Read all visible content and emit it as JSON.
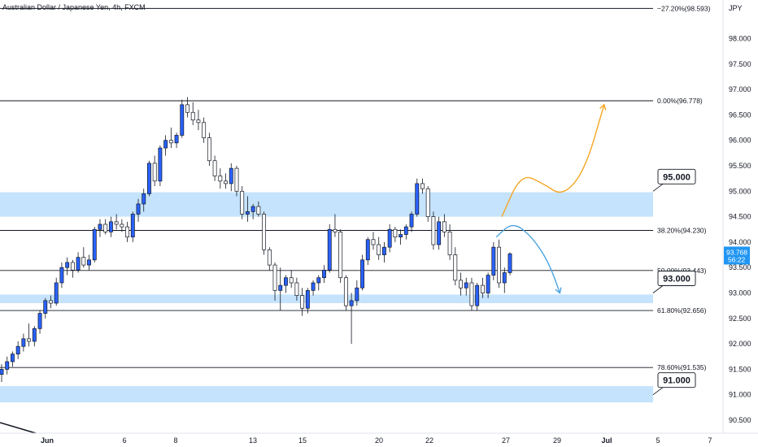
{
  "chart_data": {
    "type": "candlestick",
    "title": "Australian Dollar / Japanese Yen, 4h, FXCM",
    "y_unit": "JPY",
    "ylim": [
      90.3,
      98.8
    ],
    "y_ticks": [
      "98.000",
      "97.500",
      "97.000",
      "96.500",
      "96.000",
      "95.500",
      "95.000",
      "94.500",
      "94.000",
      "93.500",
      "93.000",
      "92.500",
      "92.000",
      "91.500",
      "91.000",
      "90.500"
    ],
    "x_ticks": [
      "Jun",
      "6",
      "8",
      "13",
      "15",
      "20",
      "22",
      "27",
      "29",
      "Jul",
      "5",
      "7"
    ],
    "fib_levels": [
      {
        "label": "−27.20%(98.593)",
        "price": 98.593
      },
      {
        "label": "0.00%(96.778)",
        "price": 96.778
      },
      {
        "label": "38.20%(94.230)",
        "price": 94.23
      },
      {
        "label": "50.00%(93.443)",
        "price": 93.443
      },
      {
        "label": "61.80%(92.656)",
        "price": 92.656
      },
      {
        "label": "78.60%(91.535)",
        "price": 91.535
      }
    ],
    "zones": [
      {
        "from": 94.5,
        "to": 94.98
      },
      {
        "from": 92.8,
        "to": 92.97
      },
      {
        "from": 90.85,
        "to": 91.17
      }
    ],
    "level_callouts": [
      {
        "text": "95.000",
        "price": 95.0
      },
      {
        "text": "93.000",
        "price": 93.0
      },
      {
        "text": "91.000",
        "price": 91.0
      }
    ],
    "price_tag": {
      "price": "93.768",
      "countdown": "56:22",
      "value": 93.768
    },
    "candles": [
      [
        91.4,
        91.6,
        91.25,
        91.5
      ],
      [
        91.5,
        91.75,
        91.4,
        91.65
      ],
      [
        91.65,
        91.85,
        91.55,
        91.8
      ],
      [
        91.8,
        92.05,
        91.7,
        91.95
      ],
      [
        91.95,
        92.2,
        91.85,
        92.1
      ],
      [
        92.1,
        92.4,
        91.95,
        92.05
      ],
      [
        92.05,
        92.35,
        91.95,
        92.3
      ],
      [
        92.3,
        92.65,
        92.2,
        92.6
      ],
      [
        92.6,
        92.9,
        92.5,
        92.85
      ],
      [
        92.85,
        92.95,
        92.7,
        92.8
      ],
      [
        92.8,
        93.3,
        92.75,
        93.2
      ],
      [
        93.2,
        93.6,
        93.1,
        93.5
      ],
      [
        93.5,
        93.7,
        93.35,
        93.6
      ],
      [
        93.6,
        93.65,
        93.3,
        93.45
      ],
      [
        93.45,
        93.8,
        93.4,
        93.7
      ],
      [
        93.7,
        93.9,
        93.5,
        93.55
      ],
      [
        93.55,
        93.75,
        93.45,
        93.65
      ],
      [
        93.65,
        94.3,
        93.6,
        94.25
      ],
      [
        94.25,
        94.45,
        94.1,
        94.35
      ],
      [
        94.35,
        94.45,
        94.15,
        94.2
      ],
      [
        94.2,
        94.5,
        94.1,
        94.4
      ],
      [
        94.4,
        94.55,
        94.25,
        94.35
      ],
      [
        94.35,
        94.45,
        94.2,
        94.3
      ],
      [
        94.3,
        94.4,
        94.0,
        94.1
      ],
      [
        94.1,
        94.6,
        94.0,
        94.55
      ],
      [
        94.55,
        94.85,
        94.4,
        94.75
      ],
      [
        94.75,
        95.05,
        94.6,
        94.95
      ],
      [
        94.95,
        95.6,
        94.9,
        95.55
      ],
      [
        95.55,
        95.7,
        95.1,
        95.2
      ],
      [
        95.2,
        95.9,
        95.1,
        95.85
      ],
      [
        95.85,
        96.1,
        95.7,
        96.0
      ],
      [
        96.0,
        96.25,
        95.85,
        95.95
      ],
      [
        95.95,
        96.15,
        95.85,
        96.1
      ],
      [
        96.1,
        96.8,
        96.05,
        96.7
      ],
      [
        96.7,
        96.85,
        96.45,
        96.55
      ],
      [
        96.55,
        96.75,
        96.3,
        96.4
      ],
      [
        96.4,
        96.6,
        96.2,
        96.35
      ],
      [
        96.35,
        96.45,
        95.95,
        96.05
      ],
      [
        96.05,
        96.15,
        95.5,
        95.6
      ],
      [
        95.6,
        95.7,
        95.2,
        95.3
      ],
      [
        95.3,
        95.45,
        95.05,
        95.2
      ],
      [
        95.2,
        95.35,
        95.05,
        95.15
      ],
      [
        95.15,
        95.55,
        95.0,
        95.45
      ],
      [
        95.45,
        95.5,
        94.9,
        95.0
      ],
      [
        95.0,
        95.1,
        94.45,
        94.55
      ],
      [
        94.55,
        94.9,
        94.4,
        94.6
      ],
      [
        94.6,
        94.75,
        94.45,
        94.7
      ],
      [
        94.7,
        94.8,
        94.5,
        94.55
      ],
      [
        94.55,
        94.6,
        93.75,
        93.85
      ],
      [
        93.85,
        93.9,
        93.45,
        93.55
      ],
      [
        93.55,
        93.6,
        92.85,
        93.05
      ],
      [
        93.05,
        93.5,
        92.65,
        93.15
      ],
      [
        93.15,
        93.35,
        93.0,
        93.3
      ],
      [
        93.3,
        93.45,
        93.1,
        93.2
      ],
      [
        93.2,
        93.3,
        92.85,
        92.95
      ],
      [
        92.95,
        93.1,
        92.55,
        92.7
      ],
      [
        92.7,
        93.1,
        92.6,
        93.05
      ],
      [
        93.05,
        93.25,
        92.95,
        93.2
      ],
      [
        93.2,
        93.35,
        93.05,
        93.3
      ],
      [
        93.3,
        93.55,
        93.2,
        93.45
      ],
      [
        93.45,
        94.35,
        93.4,
        94.25
      ],
      [
        94.25,
        94.55,
        94.1,
        94.2
      ],
      [
        94.2,
        94.25,
        93.2,
        93.3
      ],
      [
        93.3,
        93.35,
        92.65,
        92.75
      ],
      [
        92.75,
        93.0,
        92.0,
        92.85
      ],
      [
        92.85,
        93.25,
        92.75,
        93.1
      ],
      [
        93.1,
        93.75,
        93.05,
        93.65
      ],
      [
        93.65,
        94.1,
        93.55,
        94.05
      ],
      [
        94.05,
        94.2,
        93.85,
        93.95
      ],
      [
        93.95,
        94.1,
        93.65,
        93.75
      ],
      [
        93.75,
        94.0,
        93.6,
        93.9
      ],
      [
        93.9,
        94.35,
        93.8,
        94.25
      ],
      [
        94.25,
        94.3,
        94.0,
        94.1
      ],
      [
        94.1,
        94.25,
        93.95,
        94.15
      ],
      [
        94.15,
        94.35,
        94.05,
        94.3
      ],
      [
        94.3,
        94.6,
        94.2,
        94.55
      ],
      [
        94.55,
        95.25,
        94.5,
        95.15
      ],
      [
        95.15,
        95.25,
        94.95,
        95.05
      ],
      [
        95.05,
        95.1,
        94.4,
        94.5
      ],
      [
        94.5,
        94.6,
        93.85,
        93.95
      ],
      [
        93.95,
        94.5,
        93.85,
        94.4
      ],
      [
        94.4,
        94.55,
        94.1,
        94.2
      ],
      [
        94.2,
        94.35,
        93.65,
        93.75
      ],
      [
        93.75,
        93.9,
        93.15,
        93.25
      ],
      [
        93.25,
        93.4,
        92.95,
        93.1
      ],
      [
        93.1,
        93.3,
        92.95,
        93.2
      ],
      [
        93.2,
        93.3,
        92.65,
        92.75
      ],
      [
        92.75,
        93.2,
        92.65,
        93.15
      ],
      [
        93.15,
        93.3,
        92.9,
        93.0
      ],
      [
        93.0,
        93.4,
        92.9,
        93.35
      ],
      [
        93.35,
        94.0,
        93.25,
        93.9
      ],
      [
        93.9,
        94.05,
        93.1,
        93.2
      ],
      [
        93.2,
        93.5,
        93.0,
        93.4
      ],
      [
        93.4,
        93.8,
        93.35,
        93.77
      ]
    ],
    "projections": [
      {
        "name": "bullish-path",
        "color": "#f5a623",
        "points": [
          [
            10.5,
            94.5
          ],
          [
            11.2,
            95.35
          ],
          [
            12.0,
            95.15
          ],
          [
            12.7,
            94.9
          ],
          [
            13.5,
            95.4
          ],
          [
            14.2,
            96.7
          ]
        ]
      },
      {
        "name": "bearish-path",
        "color": "#4aa3df",
        "points": [
          [
            10.3,
            94.1
          ],
          [
            10.9,
            94.4
          ],
          [
            11.6,
            94.1
          ],
          [
            12.2,
            93.6
          ],
          [
            12.6,
            93.0
          ]
        ]
      }
    ]
  }
}
